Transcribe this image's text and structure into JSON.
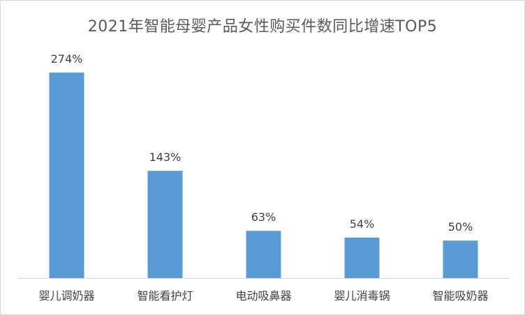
{
  "chart_data": {
    "type": "bar",
    "title": "2021年智能母婴产品女性购买件数同比增速TOP5",
    "categories": [
      "婴儿调奶器",
      "智能看护灯",
      "电动吸鼻器",
      "婴儿消毒锅",
      "智能吸奶器"
    ],
    "values": [
      274,
      143,
      63,
      54,
      50
    ],
    "value_labels": [
      "274%",
      "143%",
      "63%",
      "54%",
      "50%"
    ],
    "ylim": [
      0,
      300
    ],
    "grid": false,
    "legend": "none",
    "bar_color": "#5b9bd5"
  }
}
